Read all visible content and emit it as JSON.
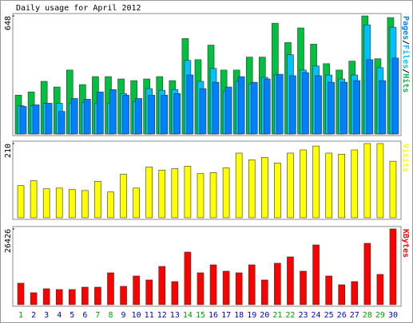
{
  "chart_data": [
    {
      "type": "bar",
      "title": "Daily usage for April 2012",
      "ylim": [
        0,
        648
      ],
      "yticks": [
        648
      ],
      "series": [
        {
          "name": "Hits",
          "color": "#00c040",
          "values": [
            213,
            231,
            289,
            258,
            351,
            271,
            315,
            315,
            302,
            293,
            302,
            315,
            293,
            524,
            408,
            488,
            351,
            351,
            422,
            422,
            608,
            502,
            582,
            493,
            386,
            351,
            400,
            648,
            413,
            639
          ]
        },
        {
          "name": "Files",
          "color": "#00c0ff",
          "values": [
            155,
            155,
            169,
            169,
            169,
            173,
            169,
            169,
            222,
            178,
            249,
            240,
            244,
            404,
            289,
            360,
            235,
            289,
            275,
            311,
            324,
            435,
            351,
            373,
            324,
            302,
            324,
            599,
            364,
            586
          ]
        },
        {
          "name": "Pages",
          "color": "#0080ff",
          "values": [
            151,
            160,
            169,
            124,
            195,
            191,
            231,
            244,
            213,
            195,
            213,
            213,
            222,
            324,
            249,
            284,
            258,
            315,
            284,
            302,
            328,
            320,
            337,
            320,
            284,
            284,
            293,
            408,
            293,
            417
          ]
        }
      ]
    },
    {
      "type": "bar",
      "ylim": [
        0,
        210
      ],
      "yticks": [
        210
      ],
      "series": [
        {
          "name": "Visits",
          "color": "#ffff00",
          "values": [
            91,
            105,
            82,
            84,
            80,
            77,
            103,
            73,
            123,
            84,
            144,
            135,
            139,
            146,
            125,
            128,
            141,
            183,
            164,
            171,
            155,
            183,
            192,
            203,
            183,
            180,
            192,
            210,
            210,
            160
          ]
        }
      ]
    },
    {
      "type": "bar",
      "ylim": [
        0,
        26426
      ],
      "yticks": [
        26426
      ],
      "categories": [
        "1",
        "2",
        "3",
        "4",
        "5",
        "6",
        "7",
        "8",
        "9",
        "10",
        "11",
        "12",
        "13",
        "14",
        "15",
        "16",
        "17",
        "18",
        "19",
        "20",
        "21",
        "22",
        "23",
        "24",
        "25",
        "26",
        "27",
        "28",
        "29",
        "30"
      ],
      "category_colors": [
        "#00a000",
        "#0000c0",
        "#0000c0",
        "#0000c0",
        "#0000c0",
        "#0000c0",
        "#00a000",
        "#00a000",
        "#0000c0",
        "#0000c0",
        "#0000c0",
        "#0000c0",
        "#0000c0",
        "#00a000",
        "#00a000",
        "#0000c0",
        "#0000c0",
        "#0000c0",
        "#0000c0",
        "#0000c0",
        "#00a000",
        "#00a000",
        "#0000c0",
        "#0000c0",
        "#0000c0",
        "#0000c0",
        "#0000c0",
        "#00a000",
        "#00a000",
        "#0000c0"
      ],
      "series": [
        {
          "name": "KBytes",
          "color": "#ff0000",
          "values": [
            7500,
            4170,
            5560,
            5280,
            5280,
            6120,
            6120,
            11120,
            6400,
            10010,
            8620,
            13340,
            8060,
            18350,
            11120,
            13900,
            11680,
            11120,
            13900,
            8620,
            14460,
            16680,
            11680,
            20850,
            10010,
            6950,
            8060,
            21410,
            10560,
            26426
          ]
        }
      ]
    }
  ]
}
